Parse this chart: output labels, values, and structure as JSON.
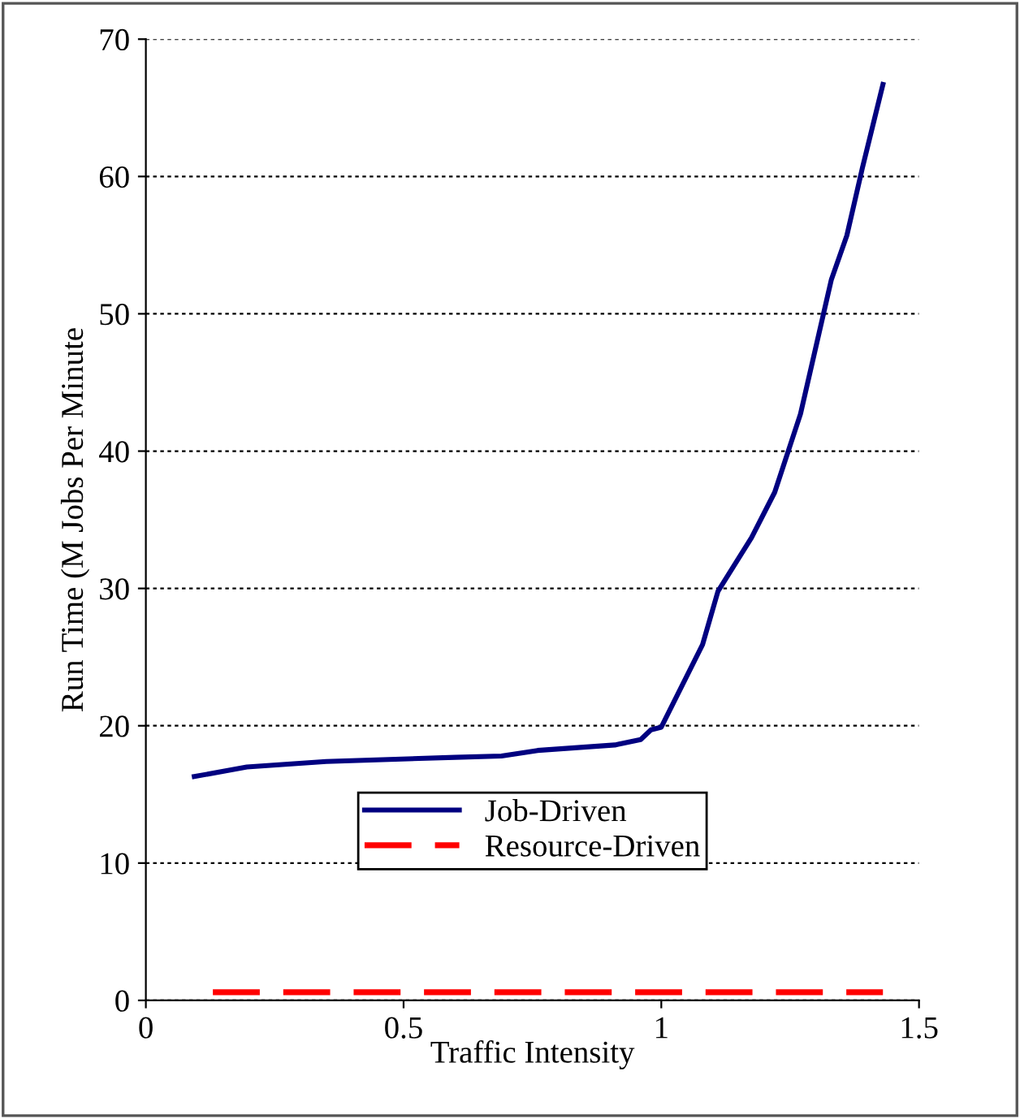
{
  "chart_data": {
    "type": "line",
    "xlabel": "Traffic Intensity",
    "ylabel": "Run Time (M Jobs Per Minute",
    "xlim": [
      0,
      1.5
    ],
    "xticks": [
      0,
      0.5,
      1,
      1.5
    ],
    "ylim": [
      0,
      70
    ],
    "yticks": [
      0,
      10,
      20,
      30,
      40,
      50,
      60,
      70
    ],
    "grid": "y",
    "legend": "bottom",
    "marker": "none",
    "series": [
      {
        "name": "Job-Driven",
        "color": "#000080",
        "line_style": "solid",
        "x": [
          0.094,
          0.196,
          0.35,
          0.6,
          0.69,
          0.76,
          0.91,
          0.96,
          0.98,
          1.0,
          1.08,
          1.11,
          1.175,
          1.22,
          1.27,
          1.33,
          1.36,
          1.39,
          1.43
        ],
        "values": [
          16.3,
          17.0,
          17.4,
          17.7,
          17.8,
          18.2,
          18.6,
          19.0,
          19.7,
          19.9,
          25.9,
          29.8,
          33.7,
          37.0,
          42.7,
          52.5,
          55.7,
          60.6,
          66.7
        ]
      },
      {
        "name": "Resource-Driven",
        "color": "#ff0000",
        "line_style": "dashed",
        "x": [
          0.13,
          1.43
        ],
        "values": [
          0.6,
          0.6
        ]
      }
    ]
  }
}
